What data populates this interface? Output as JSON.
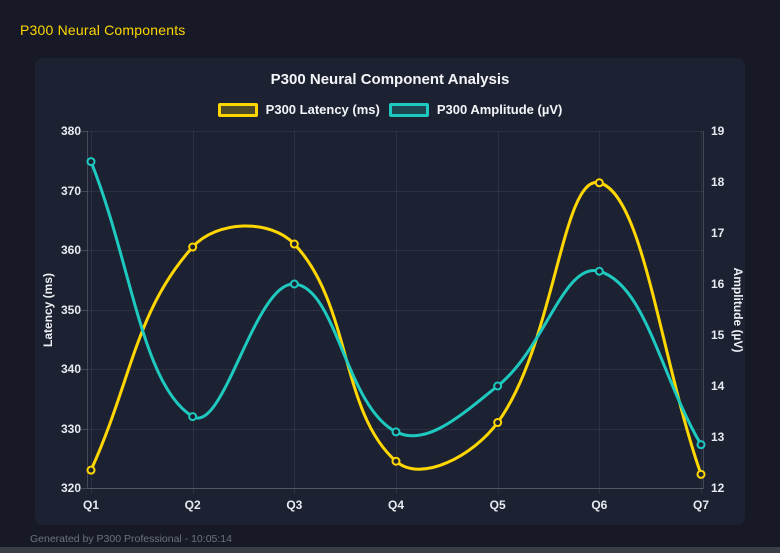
{
  "page": {
    "header_title": "P300 Neural Components",
    "footer_text": "Generated by P300 Professional - 10:05:14"
  },
  "colors": {
    "background": "#171a26",
    "card_background": "#1d2233",
    "accent_yellow": "#ffd700",
    "accent_teal": "#1ec9bf",
    "grid": "rgba(255,255,255,0.07)",
    "axis_border": "rgba(255,255,255,0.18)",
    "tick_text": "#e8eaf1",
    "footer_text": "#6c7280"
  },
  "chart_data": {
    "type": "line",
    "title": "P300 Neural Component Analysis",
    "categories": [
      "Q1",
      "Q2",
      "Q3",
      "Q4",
      "Q5",
      "Q6",
      "Q7"
    ],
    "series": [
      {
        "name": "P300 Latency (ms)",
        "axis": "left",
        "color": "#ffd700",
        "values": [
          323,
          360.5,
          361,
          324.5,
          331,
          371.3,
          322.3
        ]
      },
      {
        "name": "P300 Amplitude (µV)",
        "axis": "right",
        "color": "#1ec9bf",
        "values": [
          18.4,
          13.4,
          16.0,
          13.1,
          14.0,
          16.25,
          12.85
        ]
      }
    ],
    "left_axis": {
      "label": "Latency (ms)",
      "min": 320,
      "max": 380,
      "step": 10
    },
    "right_axis": {
      "label": "Amplitude (µV)",
      "min": 12,
      "max": 19,
      "step": 1
    },
    "grid": true,
    "smooth": true,
    "tension": 0.4,
    "legend_position": "top"
  }
}
